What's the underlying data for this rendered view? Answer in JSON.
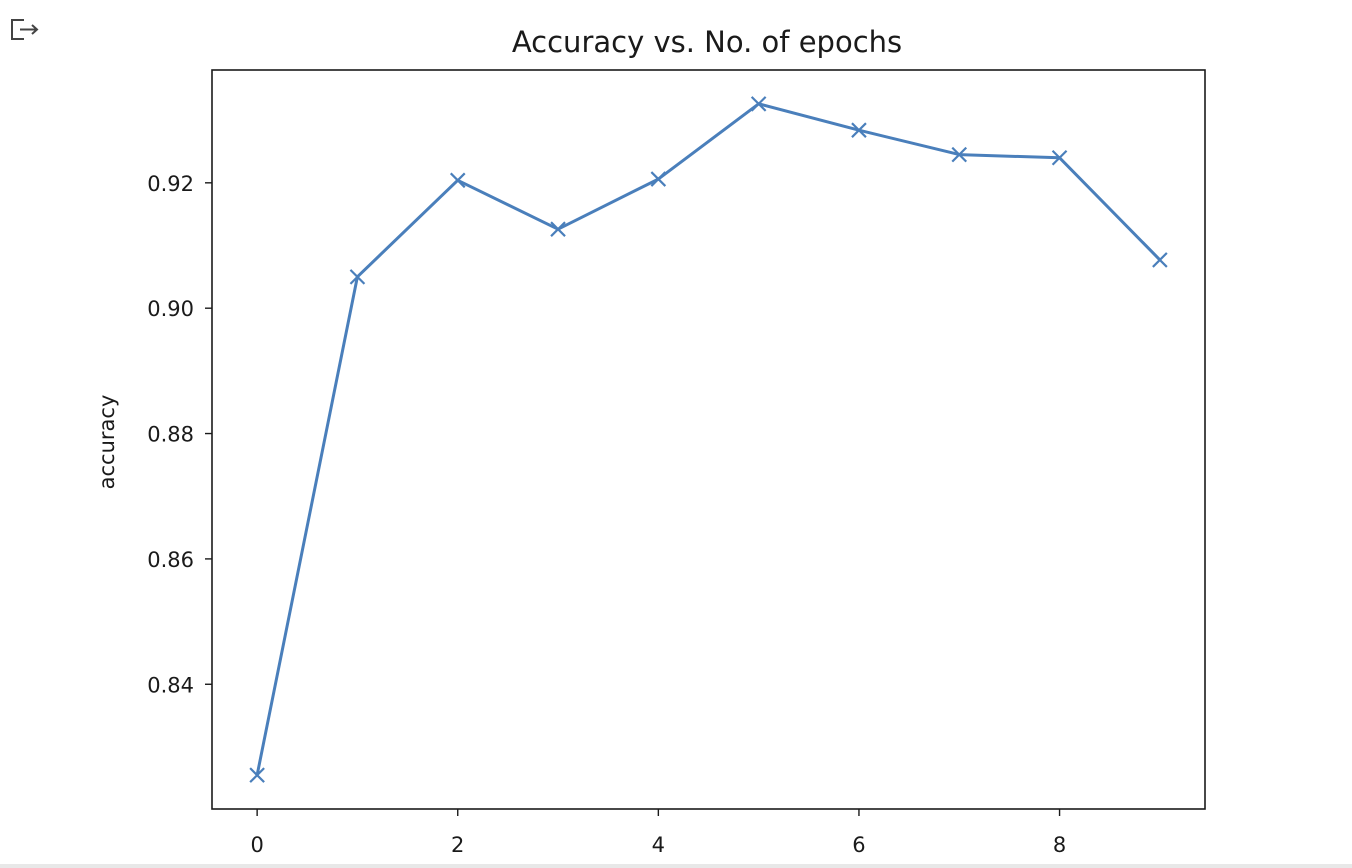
{
  "output_icon": "output-arrow-icon",
  "chart_data": {
    "type": "line",
    "title": "Accuracy vs. No. of epochs",
    "xlabel": "",
    "ylabel": "accuracy",
    "marker": "x",
    "color": "#4a7fbb",
    "x": [
      0,
      1,
      2,
      3,
      4,
      5,
      6,
      7,
      8,
      9
    ],
    "series": [
      {
        "values": [
          0.8255,
          0.905,
          0.9204,
          0.9126,
          0.9206,
          0.9326,
          0.9284,
          0.9245,
          0.924,
          0.9077
        ]
      }
    ],
    "xlim": [
      -0.45,
      9.45
    ],
    "ylim": [
      0.8201,
      0.938
    ],
    "xticks": [
      0,
      2,
      4,
      6,
      8
    ],
    "xtick_labels": [
      "0",
      "2",
      "4",
      "6",
      "8"
    ],
    "yticks": [
      0.84,
      0.86,
      0.88,
      0.9,
      0.92
    ],
    "ytick_labels": [
      "0.84",
      "0.86",
      "0.88",
      "0.90",
      "0.92"
    ],
    "grid": false,
    "legend": "none"
  }
}
